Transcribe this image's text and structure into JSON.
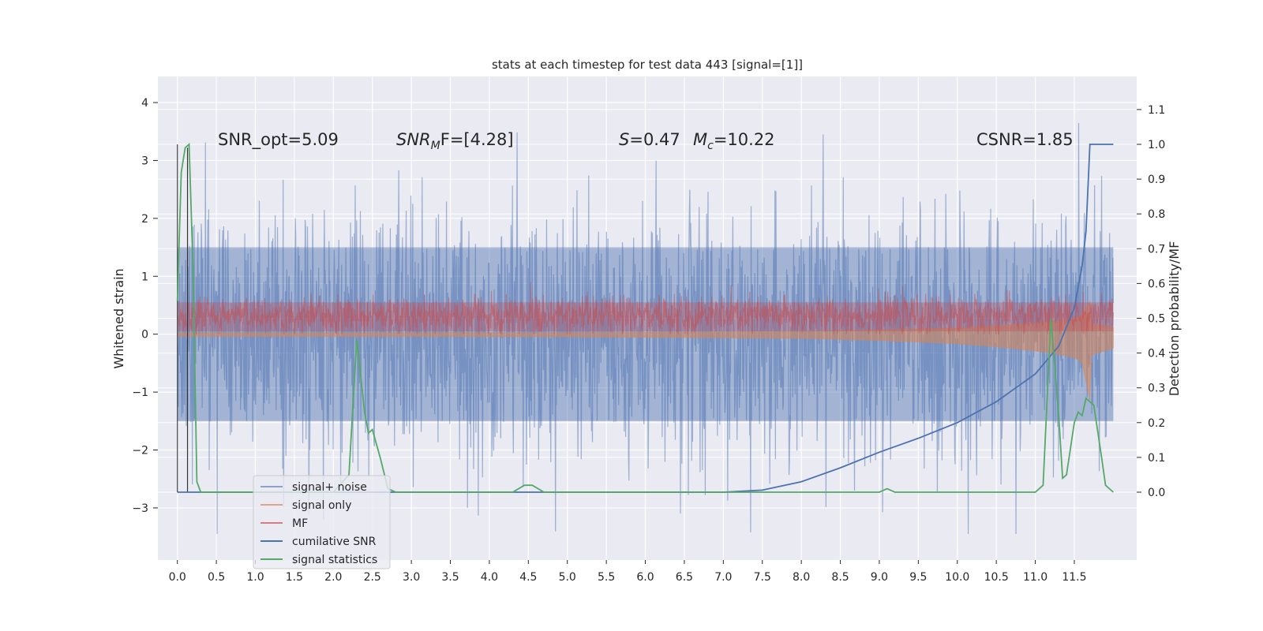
{
  "chart_data": {
    "type": "line",
    "title": "stats at each timestep for test data 443 [signal=[1]]",
    "xlabel": "",
    "ylabel": "Whitened strain",
    "y2label": "Detection probability/MF",
    "xlim": [
      -0.25,
      12.3
    ],
    "ylim": [
      -3.9,
      4.45
    ],
    "y2lim": [
      -0.195,
      1.195
    ],
    "x_ticks": [
      "0.0",
      "0.5",
      "1.0",
      "1.5",
      "2.0",
      "2.5",
      "3.0",
      "3.5",
      "4.0",
      "4.5",
      "5.0",
      "5.5",
      "6.0",
      "6.5",
      "7.0",
      "7.5",
      "8.0",
      "8.5",
      "9.0",
      "9.5",
      "10.0",
      "10.5",
      "11.0",
      "11.5"
    ],
    "y_ticks": [
      "4",
      "3",
      "2",
      "1",
      "0",
      "−1",
      "−2",
      "−3"
    ],
    "y2_ticks": [
      "1.1",
      "1.0",
      "0.9",
      "0.8",
      "0.7",
      "0.6",
      "0.5",
      "0.4",
      "0.3",
      "0.2",
      "0.1",
      "0.0"
    ],
    "grid": true,
    "legend_position": "lower-left",
    "annotations": {
      "snr_opt": "SNR_opt=5.09",
      "snr_mf_main": "SNR",
      "snr_mf_sub": "M",
      "snr_mf_rest": "F=[4.28]",
      "s_main": "S",
      "s_rest": "=0.47",
      "mc_main": "M",
      "mc_sub": "c",
      "mc_rest": "=10.22",
      "csnr": "CSNR=1.85"
    },
    "series": [
      {
        "name": "signal+ noise",
        "color": "#4c72b0",
        "description_range": [
          -3.5,
          4.1
        ],
        "x_range": [
          0.0,
          12.0
        ]
      },
      {
        "name": "signal only",
        "color": "#dd8452",
        "x_range": [
          0.0,
          12.0
        ],
        "envelope": [
          [
            0.0,
            0.04
          ],
          [
            2.0,
            0.04
          ],
          [
            5.0,
            0.05
          ],
          [
            8.0,
            0.08
          ],
          [
            9.0,
            0.12
          ],
          [
            10.0,
            0.18
          ],
          [
            10.5,
            0.24
          ],
          [
            11.0,
            0.32
          ],
          [
            11.3,
            0.38
          ],
          [
            11.5,
            0.45
          ],
          [
            11.6,
            0.55
          ],
          [
            11.7,
            0.95
          ],
          [
            11.72,
            0.3
          ],
          [
            12.0,
            0.2
          ]
        ]
      },
      {
        "name": "MF",
        "color": "#c44e52",
        "x_range": [
          0.0,
          12.0
        ],
        "band": [
          0.0,
          0.85
        ]
      },
      {
        "name": "cumilative SNR",
        "color": "#4c72b0",
        "axis": "y2",
        "points": [
          [
            0.0,
            0.0
          ],
          [
            7.0,
            0.0
          ],
          [
            7.5,
            0.006
          ],
          [
            8.0,
            0.03
          ],
          [
            8.5,
            0.07
          ],
          [
            9.0,
            0.115
          ],
          [
            9.5,
            0.155
          ],
          [
            10.0,
            0.2
          ],
          [
            10.5,
            0.26
          ],
          [
            11.0,
            0.34
          ],
          [
            11.3,
            0.42
          ],
          [
            11.5,
            0.53
          ],
          [
            11.6,
            0.65
          ],
          [
            11.65,
            0.75
          ],
          [
            11.7,
            1.0
          ],
          [
            12.0,
            1.0
          ]
        ]
      },
      {
        "name": "signal statistics",
        "color": "#55a868",
        "axis": "y2",
        "points": [
          [
            0.0,
            0.55
          ],
          [
            0.05,
            0.92
          ],
          [
            0.1,
            0.99
          ],
          [
            0.15,
            1.0
          ],
          [
            0.2,
            0.65
          ],
          [
            0.25,
            0.03
          ],
          [
            0.3,
            0.0
          ],
          [
            2.0,
            0.0
          ],
          [
            2.2,
            0.05
          ],
          [
            2.3,
            0.44
          ],
          [
            2.4,
            0.23
          ],
          [
            2.45,
            0.17
          ],
          [
            2.5,
            0.18
          ],
          [
            2.6,
            0.1
          ],
          [
            2.7,
            0.01
          ],
          [
            2.8,
            0.0
          ],
          [
            4.3,
            0.0
          ],
          [
            4.45,
            0.02
          ],
          [
            4.55,
            0.02
          ],
          [
            4.7,
            0.0
          ],
          [
            9.0,
            0.0
          ],
          [
            9.1,
            0.01
          ],
          [
            9.2,
            0.0
          ],
          [
            11.0,
            0.0
          ],
          [
            11.1,
            0.02
          ],
          [
            11.2,
            0.5
          ],
          [
            11.3,
            0.22
          ],
          [
            11.35,
            0.04
          ],
          [
            11.4,
            0.05
          ],
          [
            11.5,
            0.2
          ],
          [
            11.55,
            0.23
          ],
          [
            11.6,
            0.22
          ],
          [
            11.65,
            0.27
          ],
          [
            11.75,
            0.25
          ],
          [
            11.85,
            0.1
          ],
          [
            11.9,
            0.02
          ],
          [
            12.0,
            0.0
          ]
        ]
      }
    ],
    "colors": {
      "background": "#eaeaf2",
      "grid": "#ffffff",
      "noise": "#4c72b0",
      "signal": "#dd8452",
      "mf": "#c44e52",
      "csnr": "#4c72b0",
      "stats": "#55a868"
    }
  }
}
